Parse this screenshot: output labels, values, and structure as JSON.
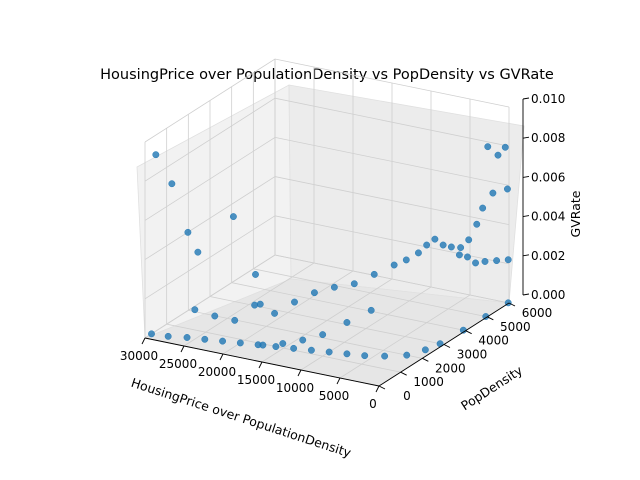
{
  "chart_data": {
    "type": "scatter",
    "projection": "3d",
    "title": "HousingPrice over PopulationDensity vs PopDensity vs GVRate",
    "xlabel": "HousingPrice over PopulationDensity",
    "ylabel": "PopDensity",
    "zlabel": "GVRate",
    "xlim": [
      0,
      30000
    ],
    "ylim": [
      0,
      6000
    ],
    "zlim": [
      0,
      0.01
    ],
    "xticks": [
      "0",
      "5000",
      "10000",
      "15000",
      "20000",
      "25000",
      "30000"
    ],
    "yticks": [
      "0",
      "1000",
      "2000",
      "3000",
      "4000",
      "5000",
      "6000"
    ],
    "zticks": [
      "0.000",
      "0.002",
      "0.004",
      "0.006",
      "0.008",
      "0.010"
    ],
    "grid": true,
    "marker_color": "#1f77b4",
    "points": [
      [
        30000,
        300,
        0.0
      ],
      [
        28000,
        350,
        0.0
      ],
      [
        26000,
        500,
        0.0
      ],
      [
        24000,
        600,
        0.0
      ],
      [
        22000,
        700,
        0.0
      ],
      [
        20000,
        800,
        0.0
      ],
      [
        18000,
        900,
        0.0
      ],
      [
        16000,
        1000,
        0.0
      ],
      [
        14000,
        1100,
        0.0
      ],
      [
        12000,
        1200,
        0.0
      ],
      [
        10000,
        1300,
        0.0
      ],
      [
        8000,
        1400,
        0.0
      ],
      [
        6000,
        1500,
        0.0
      ],
      [
        4000,
        1700,
        0.0
      ],
      [
        2000,
        2000,
        0.0
      ],
      [
        1000,
        2500,
        0.0
      ],
      [
        500,
        3000,
        0.0
      ],
      [
        300,
        4000,
        0.0
      ],
      [
        200,
        5000,
        0.0
      ],
      [
        100,
        6000,
        0.0
      ],
      [
        30000,
        500,
        0.009
      ],
      [
        28500,
        700,
        0.0075
      ],
      [
        27000,
        900,
        0.005
      ],
      [
        26000,
        1000,
        0.004
      ],
      [
        22000,
        1200,
        0.006
      ],
      [
        20000,
        1500,
        0.003
      ],
      [
        18000,
        1000,
        0.002
      ],
      [
        25000,
        500,
        0.0015
      ],
      [
        23000,
        700,
        0.0012
      ],
      [
        21000,
        900,
        0.001
      ],
      [
        19000,
        1100,
        0.0018
      ],
      [
        17000,
        1300,
        0.0014
      ],
      [
        15000,
        1500,
        0.002
      ],
      [
        13000,
        1700,
        0.0025
      ],
      [
        11000,
        1900,
        0.0028
      ],
      [
        9000,
        2100,
        0.003
      ],
      [
        7000,
        2300,
        0.0035
      ],
      [
        5000,
        2500,
        0.004
      ],
      [
        4000,
        2700,
        0.0042
      ],
      [
        3000,
        2900,
        0.0045
      ],
      [
        2500,
        3100,
        0.0048
      ],
      [
        2000,
        3300,
        0.005
      ],
      [
        1500,
        3500,
        0.0046
      ],
      [
        1000,
        3700,
        0.0044
      ],
      [
        800,
        4000,
        0.0038
      ],
      [
        600,
        4300,
        0.0035
      ],
      [
        400,
        4600,
        0.003
      ],
      [
        300,
        5000,
        0.0028
      ],
      [
        200,
        5500,
        0.0025
      ],
      [
        100,
        6000,
        0.0022
      ],
      [
        12000,
        800,
        0.0008
      ],
      [
        10000,
        1000,
        0.0011
      ],
      [
        8000,
        1400,
        0.0016
      ],
      [
        6000,
        1800,
        0.0021
      ],
      [
        14000,
        600,
        0.0006
      ],
      [
        16000,
        400,
        0.0005
      ],
      [
        500,
        5200,
        0.0085
      ],
      [
        300,
        5600,
        0.0078
      ],
      [
        200,
        5900,
        0.008
      ],
      [
        400,
        5400,
        0.006
      ],
      [
        600,
        5000,
        0.0055
      ],
      [
        200,
        6000,
        0.0058
      ],
      [
        800,
        4800,
        0.0048
      ],
      [
        1000,
        4500,
        0.0042
      ],
      [
        1200,
        4200,
        0.004
      ]
    ]
  }
}
